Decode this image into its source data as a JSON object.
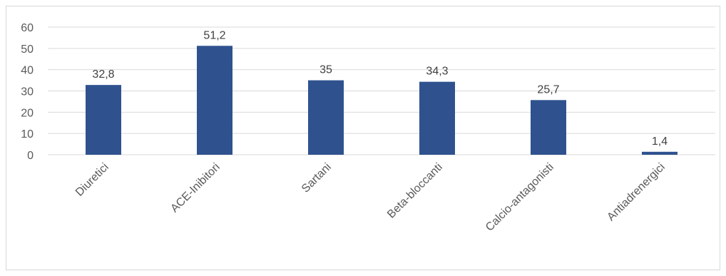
{
  "chart_data": {
    "type": "bar",
    "title": "",
    "xlabel": "",
    "ylabel": "",
    "categories": [
      "Diuretici",
      "ACE-Inibitori",
      "Sartani",
      "Beta-bloccanti",
      "Calcio-antagonisti",
      "Antiadrenergici"
    ],
    "values": [
      32.8,
      51.2,
      35,
      34.3,
      25.7,
      1.4
    ],
    "value_labels": [
      "32,8",
      "51,2",
      "35",
      "34,3",
      "25,7",
      "1,4"
    ],
    "y_ticks": [
      "0",
      "10",
      "20",
      "30",
      "40",
      "50",
      "60"
    ],
    "ylim": [
      0,
      60
    ],
    "grid": true,
    "legend": "none",
    "bar_color": "#2f528f",
    "grid_color": "#d9d9d9"
  }
}
